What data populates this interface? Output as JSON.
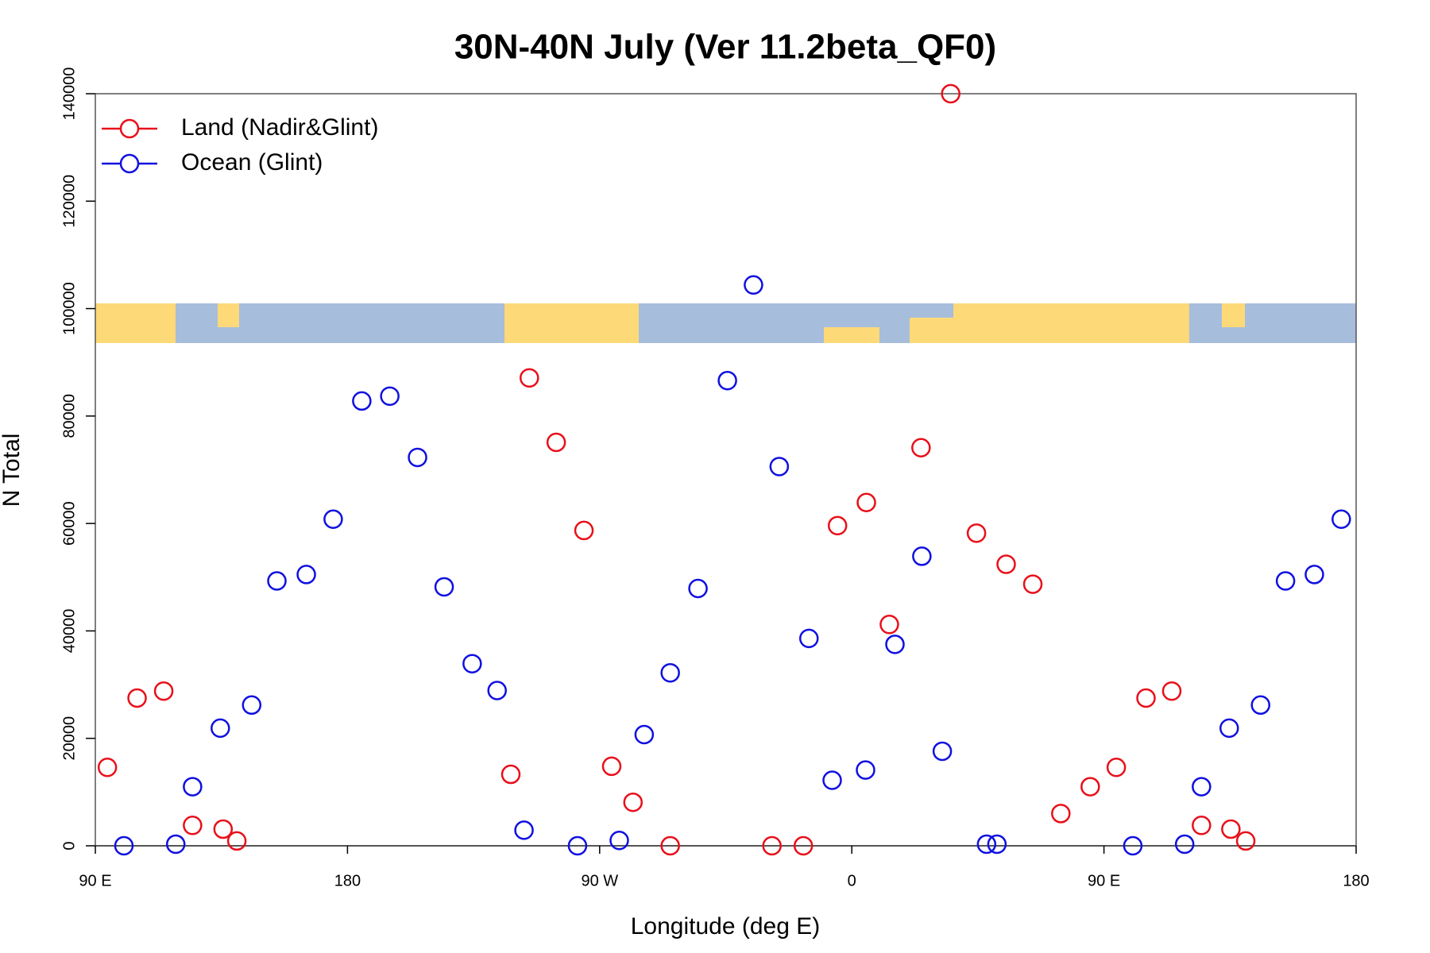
{
  "chart_data": {
    "type": "scatter",
    "title": "30N-40N July (Ver 11.2beta_QF0)",
    "x_label": "Longitude (deg E)",
    "y_label": "N Total",
    "xlim": [
      90,
      540
    ],
    "ylim": [
      0,
      140000
    ],
    "xticks": [
      {
        "value": 90,
        "label": "90 E"
      },
      180,
      {
        "value": 270,
        "label": "90 W"
      },
      {
        "value": 360,
        "label": "0"
      },
      {
        "value": 450,
        "label": "90 E"
      },
      {
        "value": 540,
        "label": "180"
      }
    ],
    "yticks": [
      0,
      20000,
      40000,
      60000,
      80000,
      100000,
      120000,
      140000
    ],
    "legend": "top-left",
    "series": [
      {
        "name": "Land (Nadir&Glint)",
        "color": "#e8101a",
        "x": [
          94.3,
          104.9,
          114.4,
          124.7,
          135.6,
          140.5,
          238.3,
          244.9,
          254.5,
          264.4,
          274.3,
          281.9,
          295.2,
          331.5,
          342.7,
          354.9,
          365.2,
          373.4,
          384.7,
          395.3,
          404.5,
          415.1,
          424.6,
          434.6,
          445.1,
          454.4,
          465.0,
          474.2,
          484.8,
          495.3,
          500.6
        ],
        "values": [
          14600,
          27500,
          28800,
          3800,
          3100,
          900,
          13300,
          87100,
          75100,
          58700,
          14800,
          8100,
          0,
          0,
          0,
          59600,
          63900,
          41200,
          74100,
          140000,
          58200,
          52400,
          48700,
          6000,
          11000,
          14600,
          27500,
          28800,
          3800,
          3100,
          900
        ]
      },
      {
        "name": "Ocean (Glint)",
        "color": "#1010e0",
        "x": [
          100.2,
          118.7,
          124.7,
          134.6,
          145.8,
          154.8,
          165.3,
          174.9,
          185.1,
          195.1,
          205.0,
          214.5,
          224.5,
          233.4,
          243.0,
          262.1,
          277.0,
          285.9,
          295.2,
          305.1,
          315.6,
          324.9,
          334.1,
          344.7,
          353.0,
          364.9,
          375.4,
          385.0,
          392.3,
          408.1,
          411.8,
          460.3,
          478.8,
          484.8,
          494.7,
          505.9,
          514.8,
          525.1,
          534.7
        ],
        "values": [
          0,
          300,
          11000,
          21900,
          26200,
          49300,
          50500,
          60800,
          82800,
          83700,
          72300,
          48200,
          33900,
          28900,
          2900,
          0,
          1000,
          20700,
          32200,
          47900,
          86600,
          104400,
          70600,
          38600,
          12200,
          14100,
          37500,
          53900,
          17600,
          300,
          300,
          0,
          300,
          11000,
          21900,
          26200,
          49300,
          50500,
          60800
        ]
      }
    ]
  }
}
